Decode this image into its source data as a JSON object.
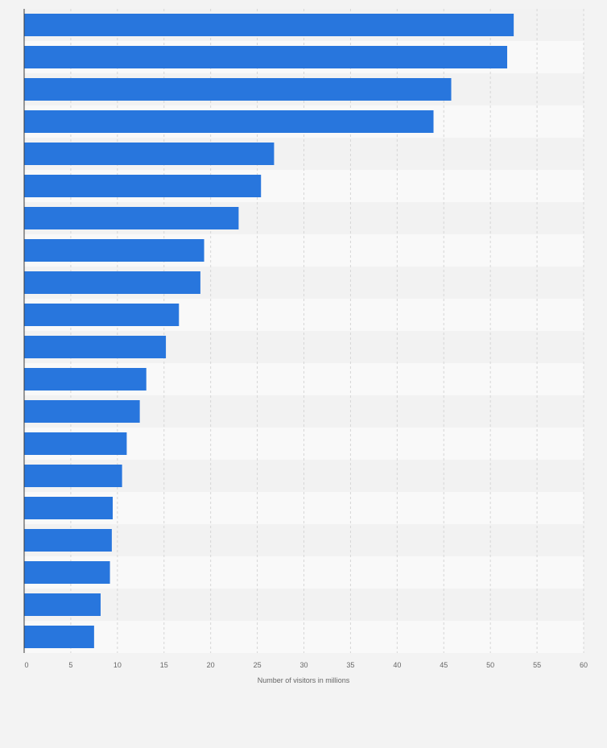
{
  "chart_data": {
    "type": "bar",
    "orientation": "horizontal",
    "title": "",
    "xlabel": "Number of visitors in millions",
    "ylabel": "",
    "xlim": [
      0,
      60
    ],
    "xticks": [
      0,
      5,
      10,
      15,
      20,
      25,
      30,
      35,
      40,
      45,
      50,
      55,
      60
    ],
    "grid": true,
    "legend": "none",
    "bar_color": "#2876dd",
    "categories": [
      "",
      "",
      "",
      "",
      "",
      "",
      "",
      "",
      "",
      "",
      "",
      "",
      "",
      "",
      "",
      "",
      "",
      "",
      "",
      ""
    ],
    "values": [
      52.5,
      51.8,
      45.8,
      43.9,
      26.8,
      25.4,
      23.0,
      19.3,
      18.9,
      16.6,
      15.2,
      13.1,
      12.4,
      11.0,
      10.5,
      9.5,
      9.4,
      9.2,
      8.2,
      7.5
    ]
  }
}
